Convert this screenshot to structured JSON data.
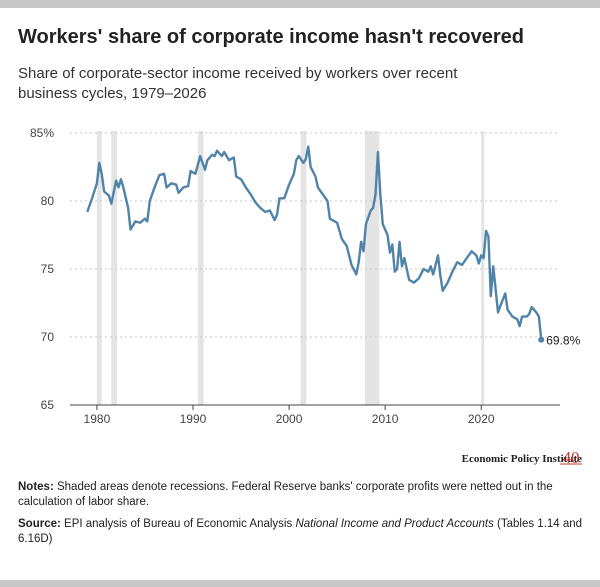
{
  "chart_data": {
    "type": "line",
    "title": "Workers' share of corporate income hasn't recovered",
    "subtitle": "Share of corporate-sector income received by workers over recent business cycles, 1979–2026",
    "xlim": [
      1977.2,
      2028.2
    ],
    "xticks": [
      1980,
      1990,
      2000,
      2010,
      2020
    ],
    "ylim": [
      65,
      85
    ],
    "yticks": [
      {
        "value": 85,
        "label": "85%"
      },
      80,
      75,
      70,
      65
    ],
    "grid": true,
    "recessions": [
      [
        1980.0,
        1980.5
      ],
      [
        1981.5,
        1982.1
      ],
      [
        1990.5,
        1991.1
      ],
      [
        2001.2,
        2001.8
      ],
      [
        2007.9,
        2009.4
      ],
      [
        2020.0,
        2020.3
      ]
    ],
    "series": [
      {
        "name": "Labor share",
        "color": "#4f84a8",
        "x": [
          1979.0,
          1979.5,
          1980.0,
          1980.25,
          1980.5,
          1980.75,
          1981.25,
          1981.5,
          1982.0,
          1982.25,
          1982.5,
          1982.75,
          1983.25,
          1983.5,
          1984.0,
          1984.5,
          1985.0,
          1985.25,
          1985.5,
          1986.0,
          1986.5,
          1987.0,
          1987.25,
          1987.75,
          1988.25,
          1988.5,
          1989.0,
          1989.5,
          1989.75,
          1990.25,
          1990.75,
          1991.25,
          1991.5,
          1992.0,
          1992.25,
          1992.5,
          1993.0,
          1993.25,
          1993.75,
          1994.25,
          1994.5,
          1995.0,
          1995.5,
          1996.0,
          1996.5,
          1997.0,
          1997.5,
          1998.0,
          1998.5,
          1998.75,
          1999.0,
          1999.5,
          1999.75,
          2000.0,
          2000.5,
          2000.75,
          2001.0,
          2001.5,
          2001.75,
          2002.0,
          2002.25,
          2002.75,
          2003.0,
          2003.5,
          2004.0,
          2004.25,
          2005.0,
          2005.5,
          2006.0,
          2006.5,
          2007.0,
          2007.25,
          2007.5,
          2007.75,
          2008.0,
          2008.5,
          2008.75,
          2009.0,
          2009.25,
          2009.5,
          2009.75,
          2010.25,
          2010.5,
          2010.75,
          2011.0,
          2011.25,
          2011.5,
          2011.75,
          2012.0,
          2012.5,
          2013.0,
          2013.5,
          2014.0,
          2014.5,
          2014.75,
          2015.0,
          2015.5,
          2015.75,
          2016.0,
          2016.5,
          2017.0,
          2017.5,
          2018.0,
          2018.5,
          2019.0,
          2019.5,
          2019.75,
          2020.0,
          2020.25,
          2020.5,
          2020.75,
          2021.0,
          2021.25,
          2021.75,
          2022.0,
          2022.5,
          2022.75,
          2023.25,
          2023.75,
          2024.0,
          2024.25,
          2024.75,
          2025.0,
          2025.25,
          2025.75,
          2026.0,
          2026.25
        ],
        "values": [
          79.2,
          80.2,
          81.3,
          82.8,
          82.0,
          80.7,
          80.4,
          79.8,
          81.5,
          81.0,
          81.6,
          81.0,
          79.5,
          77.9,
          78.5,
          78.4,
          78.7,
          78.5,
          80.0,
          81.0,
          81.9,
          82.0,
          81.0,
          81.3,
          81.2,
          80.6,
          81.0,
          81.1,
          82.2,
          82.0,
          83.3,
          82.3,
          83.0,
          83.4,
          83.3,
          83.7,
          83.3,
          83.6,
          83.0,
          83.2,
          81.8,
          81.6,
          81.0,
          80.5,
          79.9,
          79.5,
          79.2,
          79.3,
          78.6,
          79.0,
          80.2,
          80.2,
          80.7,
          81.2,
          82.0,
          83.0,
          83.3,
          82.8,
          83.1,
          84.0,
          82.5,
          81.8,
          81.0,
          80.5,
          80.0,
          78.7,
          78.4,
          77.2,
          76.7,
          75.3,
          74.6,
          75.5,
          77.0,
          76.3,
          78.3,
          79.3,
          79.5,
          80.5,
          83.6,
          80.5,
          78.3,
          77.5,
          76.2,
          76.8,
          74.8,
          75.0,
          77.0,
          75.2,
          75.8,
          74.2,
          74.0,
          74.3,
          75.0,
          74.8,
          75.2,
          74.6,
          76.0,
          74.5,
          73.4,
          74.0,
          74.8,
          75.5,
          75.3,
          75.8,
          76.3,
          76.0,
          75.4,
          76.0,
          75.8,
          77.8,
          77.4,
          73.0,
          75.2,
          71.8,
          72.3,
          73.2,
          72.0,
          71.5,
          71.3,
          70.8,
          71.5,
          71.5,
          71.7,
          72.2,
          71.8,
          71.5,
          69.8
        ]
      }
    ],
    "annotation": "69.8%",
    "logo": {
      "text": "Economic Policy Institute",
      "badge": "40"
    },
    "notes": {
      "label": "Notes:",
      "text": "Shaded areas denote recessions. Federal Reserve banks' corporate profits were netted out in the calculation of labor share."
    },
    "source": {
      "label": "Source:",
      "text": "EPI analysis of Bureau of Economic Analysis",
      "italic": "National Income and Product Accounts",
      "text_after": "(Tables 1.14 and 6.16D)"
    }
  }
}
